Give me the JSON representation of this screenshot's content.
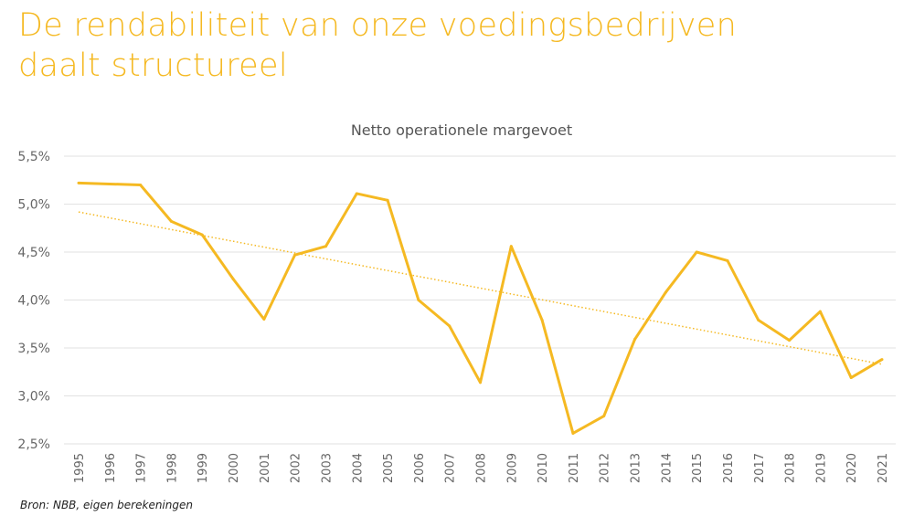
{
  "title_line1": "De rendabiliteit van onze voedingsbedrijven",
  "title_line2": "daalt structureel",
  "source": "Bron: NBB, eigen berekeningen",
  "chart_data": {
    "type": "line",
    "title": "Netto operationele margevoet",
    "xlabel": "",
    "ylabel": "",
    "ylim": [
      2.5,
      5.5
    ],
    "yticks": [
      2.5,
      3.0,
      3.5,
      4.0,
      4.5,
      5.0,
      5.5
    ],
    "ytick_labels": [
      "2,5%",
      "3,0%",
      "3,5%",
      "4,0%",
      "4,5%",
      "5,0%",
      "5,5%"
    ],
    "grid": "horizontal",
    "x": [
      "1995",
      "1996",
      "1997",
      "1998",
      "1999",
      "2000",
      "2001",
      "2002",
      "2003",
      "2004",
      "2005",
      "2006",
      "2007",
      "2008",
      "2009",
      "2010",
      "2011",
      "2012",
      "2013",
      "2014",
      "2015",
      "2016",
      "2017",
      "2018",
      "2019",
      "2020",
      "2021"
    ],
    "series": [
      {
        "values": [
          5.22,
          5.21,
          5.2,
          4.82,
          4.68,
          4.22,
          3.8,
          4.47,
          4.56,
          5.11,
          5.04,
          4.0,
          3.73,
          3.14,
          4.56,
          3.79,
          2.61,
          2.79,
          3.59,
          4.08,
          4.5,
          4.41,
          3.79,
          3.58,
          3.88,
          3.19,
          3.38
        ],
        "color": "#f5b922"
      }
    ],
    "trendline": {
      "type": "linear",
      "style": "dotted",
      "color": "#f5b922"
    }
  }
}
